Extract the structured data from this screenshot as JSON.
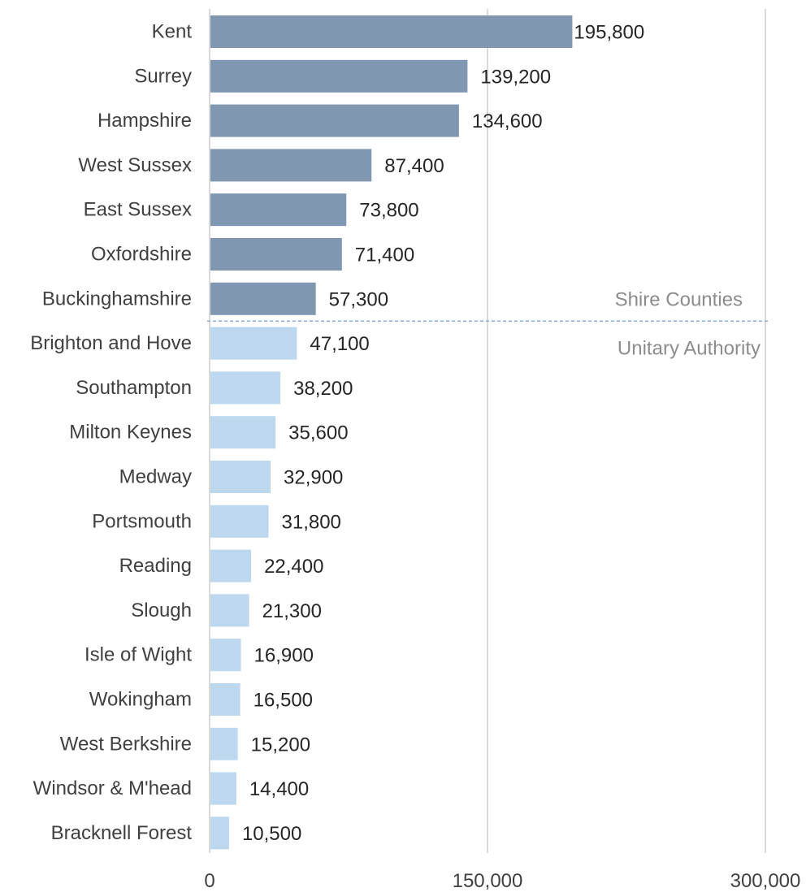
{
  "chart_data": {
    "type": "bar",
    "orientation": "horizontal",
    "title": "",
    "xlabel": "",
    "ylabel": "",
    "xlim": [
      0,
      300000
    ],
    "x_ticks": [
      0,
      150000,
      300000
    ],
    "x_tick_labels": [
      "0",
      "150,000",
      "300,000"
    ],
    "grid": "vertical",
    "categories": [
      "Kent",
      "Surrey",
      "Hampshire",
      "West Sussex",
      "East Sussex",
      "Oxfordshire",
      "Buckinghamshire",
      "Brighton and Hove",
      "Southampton",
      "Milton Keynes",
      "Medway",
      "Portsmouth",
      "Reading",
      "Slough",
      "Isle of Wight",
      "Wokingham",
      "West Berkshire",
      "Windsor & M'head",
      "Bracknell Forest"
    ],
    "values": [
      195800,
      139200,
      134600,
      87400,
      73800,
      71400,
      57300,
      47100,
      38200,
      35600,
      32900,
      31800,
      22400,
      21300,
      16900,
      16500,
      15200,
      14400,
      10500
    ],
    "value_labels": [
      "195,800",
      "139,200",
      "134,600",
      "87,400",
      "73,800",
      "71,400",
      "57,300",
      "47,100",
      "38,200",
      "35,600",
      "32,900",
      "31,800",
      "22,400",
      "21,300",
      "16,900",
      "16,500",
      "15,200",
      "14,400",
      "10,500"
    ],
    "groups": [
      {
        "label": "Shire Counties",
        "start_index": 0,
        "end_index": 6,
        "color": "#8097b1"
      },
      {
        "label": "Unitary Authority",
        "start_index": 7,
        "end_index": 18,
        "color": "#bdd7ee"
      }
    ],
    "separator": {
      "after_index": 6,
      "style": "dashed",
      "color": "#8faadc"
    },
    "colors": {
      "grid": "#d9d9d9",
      "axis": "#d9d9d9"
    }
  }
}
